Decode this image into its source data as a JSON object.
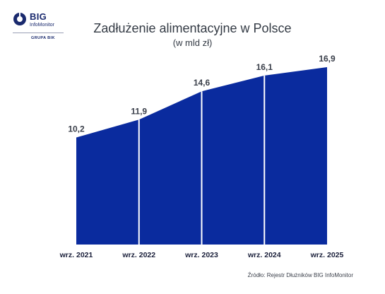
{
  "logo": {
    "brand": "BIG",
    "product": "InfoMonitor",
    "group": "GRUPA BIK"
  },
  "chart_data": {
    "type": "area",
    "title": "Zadłużenie alimentacyjne w Polsce",
    "subtitle": "(w mld zł)",
    "categories": [
      "wrz. 2021",
      "wrz. 2022",
      "wrz. 2023",
      "wrz. 2024",
      "wrz. 2025"
    ],
    "series": [
      {
        "values": [
          10.2,
          11.9,
          14.6,
          16.1,
          16.9
        ]
      }
    ],
    "data_labels": [
      "10,2",
      "11,9",
      "14,6",
      "16,1",
      "16,9"
    ],
    "ylim": [
      0,
      17.5
    ],
    "grid": false,
    "fill_color": "#0a2b9e",
    "divider_color": "#ffffff"
  },
  "source": "Źródło: Rejestr Dłużników BIG InfoMonitor"
}
